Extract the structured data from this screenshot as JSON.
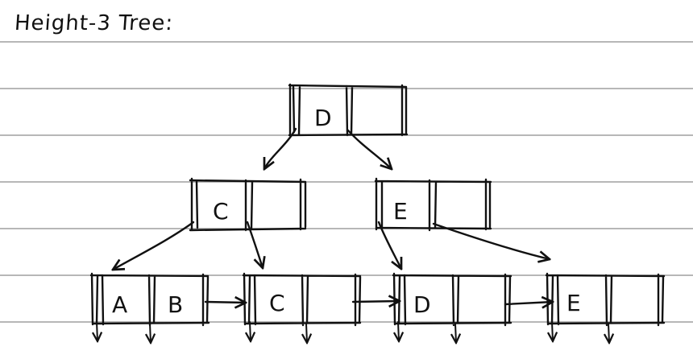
{
  "title": "Height-3 Tree:",
  "colors": {
    "ruled_line": "#8c8c8c",
    "ink": "#111111",
    "paper": "#ffffff"
  },
  "root": {
    "keys": [
      "D",
      ""
    ]
  },
  "internal": [
    {
      "keys": [
        "C",
        ""
      ]
    },
    {
      "keys": [
        "E",
        ""
      ]
    }
  ],
  "leaves": [
    {
      "keys": [
        "A",
        "B"
      ]
    },
    {
      "keys": [
        "C",
        ""
      ]
    },
    {
      "keys": [
        "D",
        ""
      ]
    },
    {
      "keys": [
        "E",
        ""
      ]
    }
  ]
}
